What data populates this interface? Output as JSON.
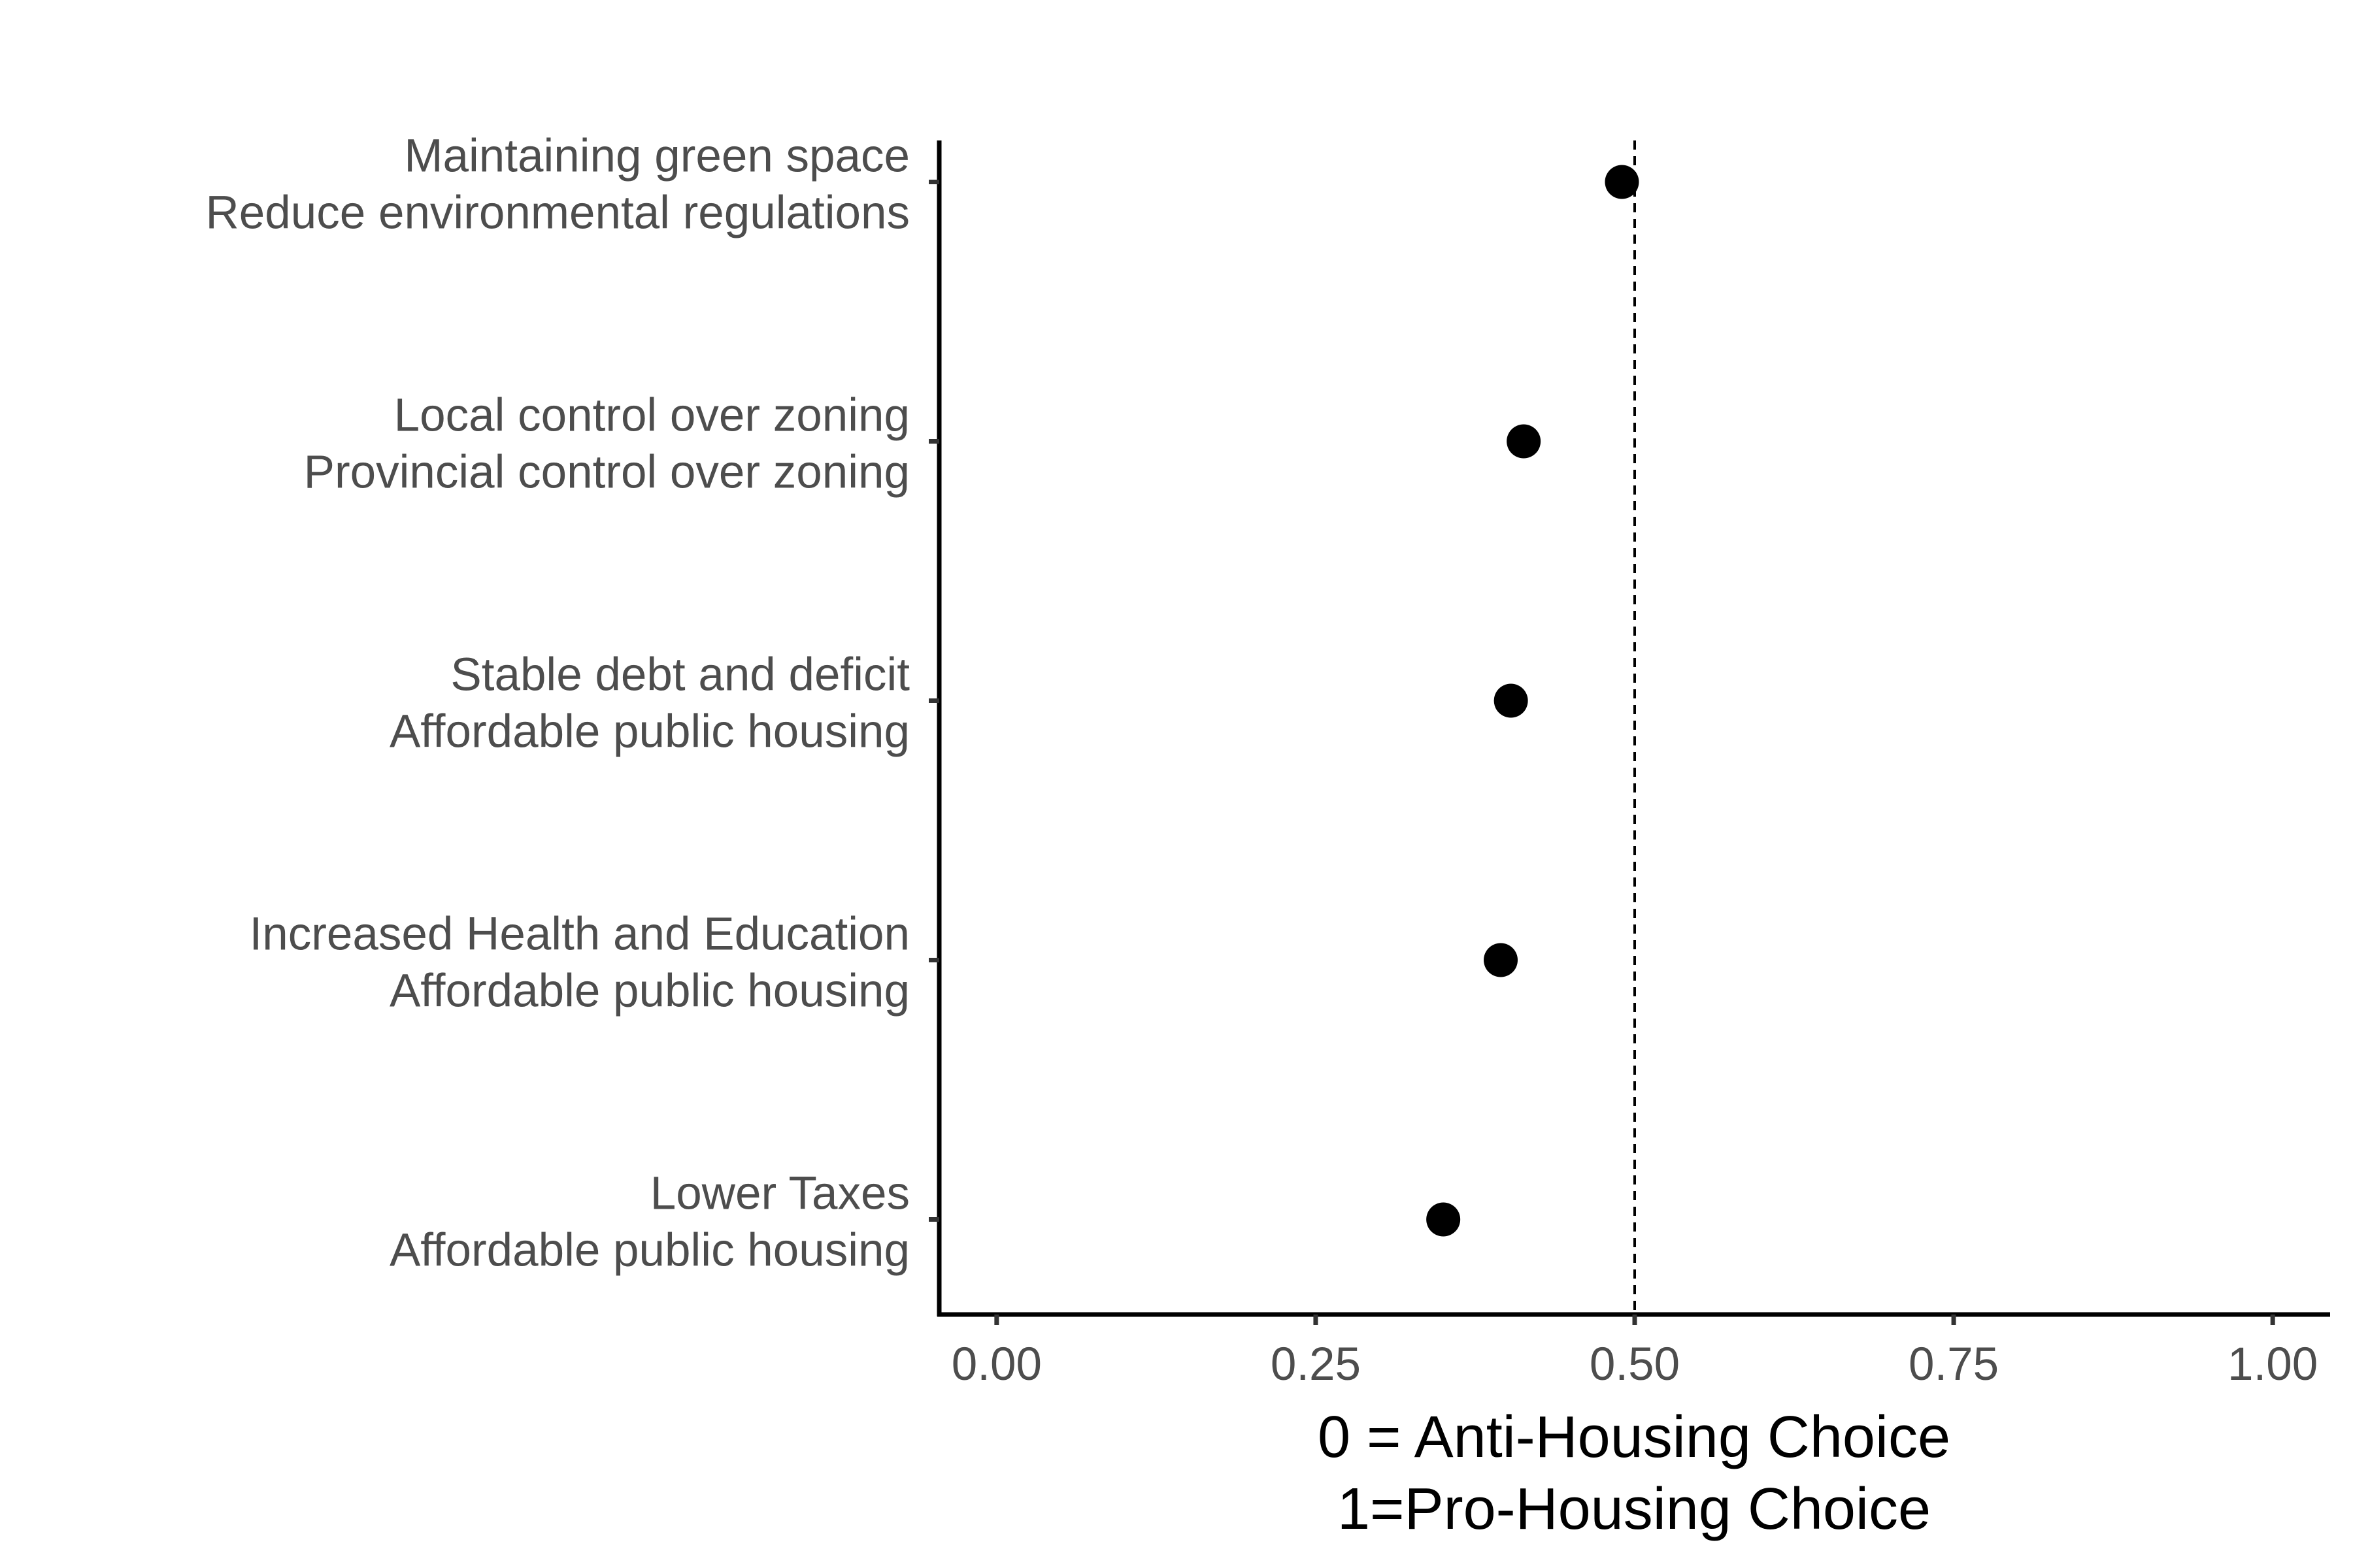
{
  "chart_data": {
    "type": "scatter",
    "title": "",
    "xlabel_lines": [
      "0 = Anti-Housing Choice",
      "1=Pro-Housing Choice"
    ],
    "ylabel": "",
    "xlim": [
      -0.045,
      1.045
    ],
    "x_ticks": [
      0.0,
      0.25,
      0.5,
      0.75,
      1.0
    ],
    "x_tick_labels": [
      "0.00",
      "0.25",
      "0.50",
      "0.75",
      "1.00"
    ],
    "reference_line": {
      "x": 0.5,
      "style": "dashed"
    },
    "grid": false,
    "legend": "none",
    "point_color": "#000000",
    "categories": [
      {
        "lines": [
          "Maintaining green space",
          "Reduce environmental regulations"
        ],
        "value": 0.49
      },
      {
        "lines": [
          "Local control over zoning",
          "Provincial control over zoning"
        ],
        "value": 0.413
      },
      {
        "lines": [
          "Stable debt and deficit",
          "Affordable public housing"
        ],
        "value": 0.403
      },
      {
        "lines": [
          "Increased Health and Education",
          "Affordable public housing"
        ],
        "value": 0.395
      },
      {
        "lines": [
          "Lower Taxes",
          "Affordable public housing"
        ],
        "value": 0.35
      }
    ]
  }
}
